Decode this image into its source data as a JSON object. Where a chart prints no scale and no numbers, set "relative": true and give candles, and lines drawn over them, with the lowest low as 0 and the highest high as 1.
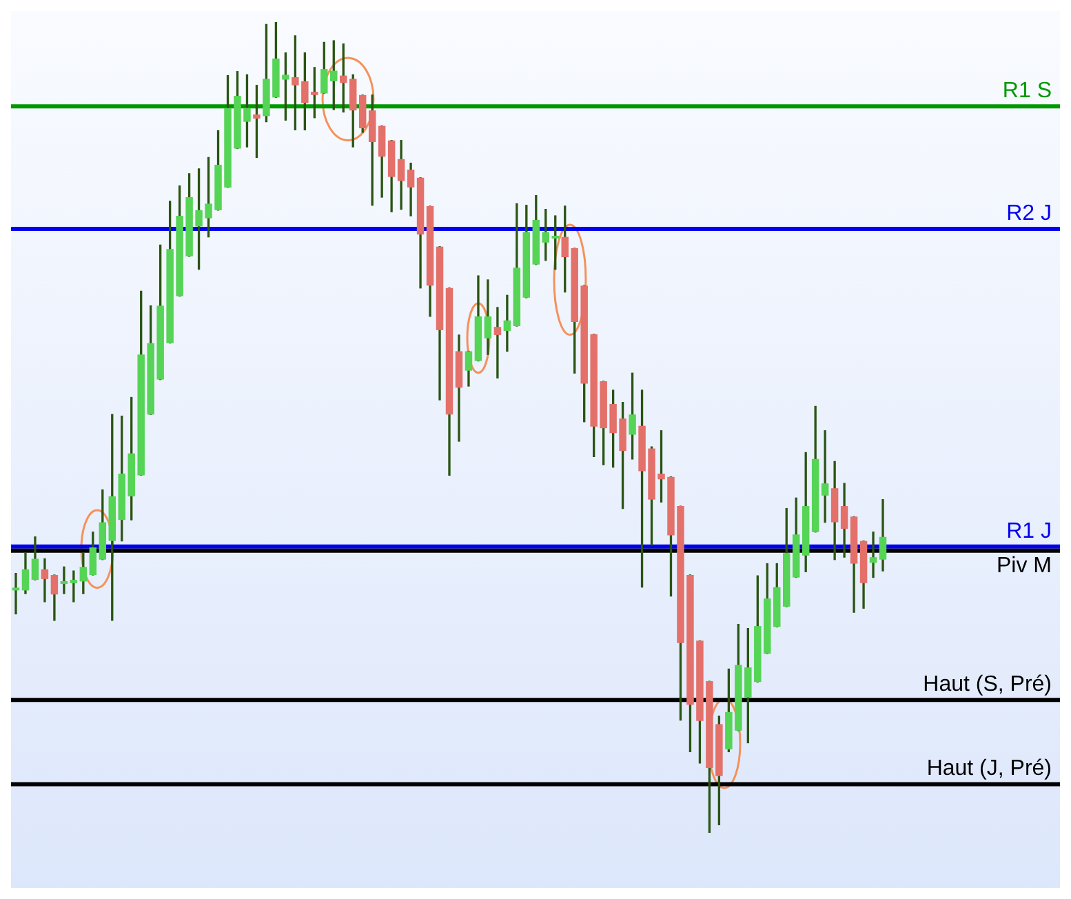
{
  "chart_data": {
    "type": "candlestick",
    "relative": true,
    "tick_labels": false,
    "categories": [
      null,
      null,
      null,
      null,
      null,
      null,
      null,
      null,
      null,
      null,
      null,
      null,
      null,
      null,
      null,
      null,
      null,
      null,
      null,
      null,
      null,
      null,
      null,
      null,
      null,
      null,
      null,
      null,
      null,
      null,
      null,
      null,
      null,
      null,
      null,
      null,
      null,
      null,
      null,
      null,
      null,
      null,
      null,
      null,
      null,
      null,
      null,
      null,
      null,
      null,
      null,
      null,
      null,
      null,
      null,
      null,
      null,
      null,
      null,
      null,
      null,
      null,
      null,
      null,
      null,
      null,
      null,
      null,
      null,
      null,
      null,
      null,
      null,
      null,
      null,
      null,
      null,
      null,
      null,
      null,
      null,
      null,
      null,
      null,
      null,
      null,
      null,
      null,
      null,
      null,
      null
    ],
    "ohlc": [
      [
        0.299,
        0.32,
        0.27,
        0.299
      ],
      [
        0.299,
        0.345,
        0.295,
        0.325
      ],
      [
        0.312,
        0.365,
        0.312,
        0.338
      ],
      [
        0.325,
        0.338,
        0.285,
        0.313
      ],
      [
        0.318,
        0.318,
        0.262,
        0.294
      ],
      [
        0.307,
        0.328,
        0.295,
        0.31
      ],
      [
        0.308,
        0.323,
        0.285,
        0.312
      ],
      [
        0.31,
        0.345,
        0.295,
        0.328
      ],
      [
        0.318,
        0.371,
        0.318,
        0.352
      ],
      [
        0.337,
        0.423,
        0.337,
        0.383
      ],
      [
        0.36,
        0.516,
        0.262,
        0.415
      ],
      [
        0.386,
        0.514,
        0.36,
        0.443
      ],
      [
        0.415,
        0.537,
        0.386,
        0.468
      ],
      [
        0.441,
        0.668,
        0.441,
        0.59
      ],
      [
        0.516,
        0.65,
        0.516,
        0.604
      ],
      [
        0.559,
        0.725,
        0.559,
        0.65
      ],
      [
        0.604,
        0.779,
        0.604,
        0.72
      ],
      [
        0.662,
        0.798,
        0.662,
        0.761
      ],
      [
        0.711,
        0.813,
        0.711,
        0.784
      ],
      [
        0.748,
        0.819,
        0.695,
        0.768
      ],
      [
        0.758,
        0.833,
        0.735,
        0.776
      ],
      [
        0.768,
        0.866,
        0.768,
        0.824
      ],
      [
        0.796,
        0.934,
        0.796,
        0.894
      ],
      [
        0.844,
        0.939,
        0.844,
        0.909
      ],
      [
        0.877,
        0.935,
        0.846,
        0.894
      ],
      [
        0.886,
        0.922,
        0.833,
        0.881
      ],
      [
        0.884,
        0.997,
        0.877,
        0.93
      ],
      [
        0.907,
        1,
        0.907,
        0.955
      ],
      [
        0.929,
        0.962,
        0.879,
        0.935
      ],
      [
        0.932,
        0.983,
        0.867,
        0.922
      ],
      [
        0.927,
        0.962,
        0.867,
        0.9
      ],
      [
        0.914,
        0.944,
        0.882,
        0.91
      ],
      [
        0.912,
        0.975,
        0.912,
        0.942
      ],
      [
        0.927,
        0.977,
        0.892,
        0.94
      ],
      [
        0.934,
        0.973,
        0.889,
        0.925
      ],
      [
        0.93,
        0.935,
        0.846,
        0.891
      ],
      [
        0.91,
        0.91,
        0.864,
        0.869
      ],
      [
        0.891,
        0.91,
        0.774,
        0.852
      ],
      [
        0.872,
        0.872,
        0.784,
        0.834
      ],
      [
        0.854,
        0.854,
        0.766,
        0.809
      ],
      [
        0.831,
        0.854,
        0.769,
        0.804
      ],
      [
        0.818,
        0.826,
        0.761,
        0.796
      ],
      [
        0.808,
        0.808,
        0.672,
        0.738
      ],
      [
        0.773,
        0.773,
        0.637,
        0.675
      ],
      [
        0.723,
        0.723,
        0.534,
        0.62
      ],
      [
        0.672,
        0.672,
        0.441,
        0.516
      ],
      [
        0.594,
        0.614,
        0.483,
        0.549
      ],
      [
        0.57,
        0.594,
        0.551,
        0.594
      ],
      [
        0.582,
        0.687,
        0.582,
        0.637
      ],
      [
        0.61,
        0.682,
        0.59,
        0.637
      ],
      [
        0.624,
        0.648,
        0.561,
        0.614
      ],
      [
        0.619,
        0.663,
        0.594,
        0.632
      ],
      [
        0.625,
        0.776,
        0.625,
        0.697
      ],
      [
        0.66,
        0.774,
        0.66,
        0.741
      ],
      [
        0.701,
        0.786,
        0.701,
        0.756
      ],
      [
        0.728,
        0.769,
        0.706,
        0.741
      ],
      [
        0.733,
        0.761,
        0.695,
        0.733
      ],
      [
        0.735,
        0.773,
        0.667,
        0.71
      ],
      [
        0.721,
        0.721,
        0.567,
        0.63
      ],
      [
        0.675,
        0.675,
        0.507,
        0.554
      ],
      [
        0.615,
        0.615,
        0.464,
        0.501
      ],
      [
        0.557,
        0.557,
        0.454,
        0.499
      ],
      [
        0.529,
        0.546,
        0.451,
        0.493
      ],
      [
        0.511,
        0.531,
        0.4,
        0.471
      ],
      [
        0.491,
        0.567,
        0.461,
        0.516
      ],
      [
        0.502,
        0.546,
        0.303,
        0.446
      ],
      [
        0.474,
        0.476,
        0.355,
        0.411
      ],
      [
        0.443,
        0.496,
        0.408,
        0.436
      ],
      [
        0.439,
        0.439,
        0.292,
        0.367
      ],
      [
        0.403,
        0.403,
        0.139,
        0.234
      ],
      [
        0.318,
        0.318,
        0.1,
        0.158
      ],
      [
        0.237,
        0.237,
        0.086,
        0.138
      ],
      [
        0.187,
        0.187,
        0,
        0.08
      ],
      [
        0.134,
        0.144,
        0.01,
        0.07
      ],
      [
        0.103,
        0.202,
        0.1,
        0.149
      ],
      [
        0.126,
        0.257,
        0.126,
        0.207
      ],
      [
        0.167,
        0.252,
        0.111,
        0.204
      ],
      [
        0.186,
        0.317,
        0.186,
        0.255
      ],
      [
        0.221,
        0.332,
        0.221,
        0.289
      ],
      [
        0.254,
        0.332,
        0.254,
        0.303
      ],
      [
        0.279,
        0.4,
        0.279,
        0.345
      ],
      [
        0.315,
        0.413,
        0.315,
        0.368
      ],
      [
        0.342,
        0.469,
        0.322,
        0.403
      ],
      [
        0.371,
        0.526,
        0.371,
        0.461
      ],
      [
        0.416,
        0.496,
        0.383,
        0.431
      ],
      [
        0.425,
        0.458,
        0.337,
        0.383
      ],
      [
        0.403,
        0.431,
        0.34,
        0.375
      ],
      [
        0.39,
        0.39,
        0.272,
        0.332
      ],
      [
        0.36,
        0.36,
        0.277,
        0.308
      ],
      [
        0.333,
        0.371,
        0.315,
        0.34
      ],
      [
        0.337,
        0.411,
        0.323,
        0.365
      ]
    ],
    "ref_lines": [
      {
        "axis": "y",
        "value": 0.896,
        "label": "R1 S",
        "color": "#009900"
      },
      {
        "axis": "y",
        "value": 0.745,
        "label": "R2 J",
        "color": "#0000ee"
      },
      {
        "axis": "y",
        "value": 0.353,
        "label": "R1 J",
        "color": "#0000ee"
      },
      {
        "axis": "y",
        "value": 0.348,
        "label": "Piv M",
        "color": "#000000"
      },
      {
        "axis": "y",
        "value": 0.164,
        "label": "Haut (S, Pré)",
        "color": "#000000"
      },
      {
        "axis": "y",
        "value": 0.06,
        "label": "Haut (J, Pré)",
        "color": "#000000"
      }
    ]
  }
}
